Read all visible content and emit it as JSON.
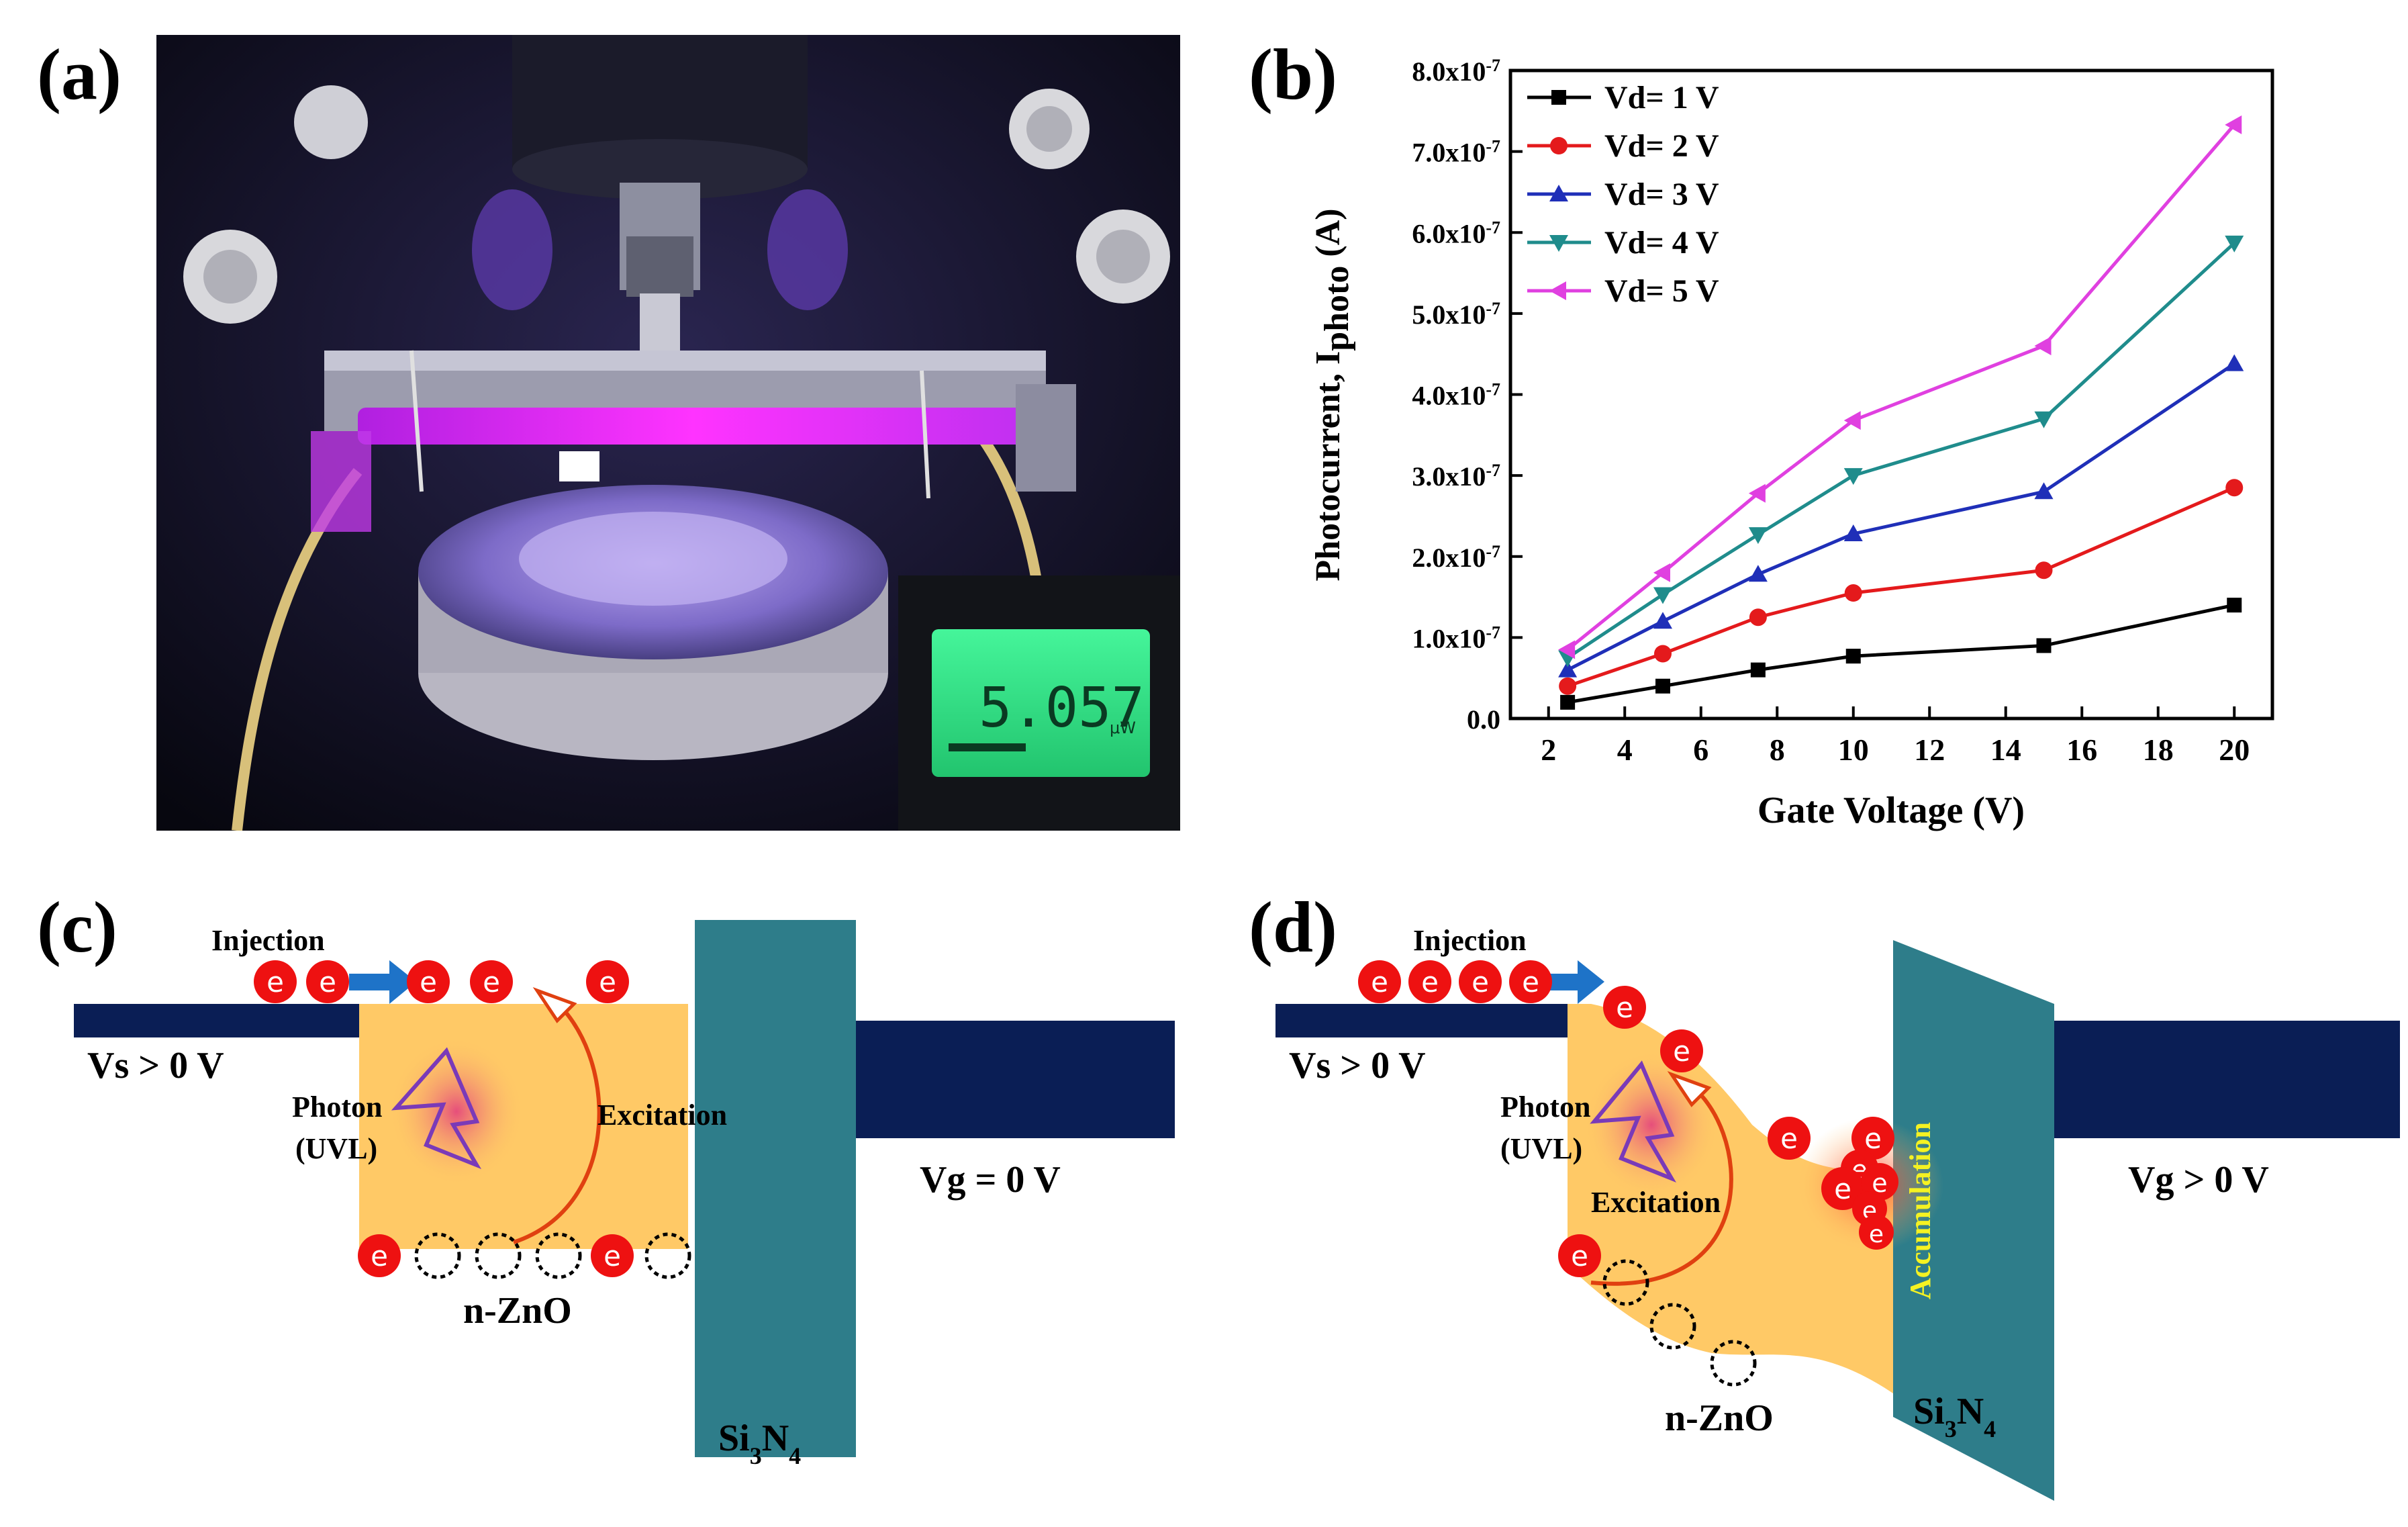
{
  "panels": {
    "a": "(a)",
    "b": "(b)",
    "c": "(c)",
    "d": "(d)"
  },
  "photo": {
    "meter_reading": "5.057",
    "meter_unit": "μW"
  },
  "chart_data": {
    "type": "line",
    "xlabel": "Gate Voltage (V)",
    "ylabel_main": "Photocurrent, I",
    "ylabel_sub": "photo",
    "ylabel_unit": " (A)",
    "x": [
      2.5,
      5,
      7.5,
      10,
      15,
      20
    ],
    "xlim": [
      1,
      21
    ],
    "ylim": [
      0,
      8e-07
    ],
    "xticks": [
      2,
      4,
      6,
      8,
      10,
      12,
      14,
      16,
      18,
      20
    ],
    "yticks": [
      {
        "v": 0,
        "label": "0.0",
        "exp": ""
      },
      {
        "v": 1e-07,
        "label": "1.0x10",
        "exp": "-7"
      },
      {
        "v": 2e-07,
        "label": "2.0x10",
        "exp": "-7"
      },
      {
        "v": 3e-07,
        "label": "3.0x10",
        "exp": "-7"
      },
      {
        "v": 4e-07,
        "label": "4.0x10",
        "exp": "-7"
      },
      {
        "v": 5e-07,
        "label": "5.0x10",
        "exp": "-7"
      },
      {
        "v": 6e-07,
        "label": "6.0x10",
        "exp": "-7"
      },
      {
        "v": 7e-07,
        "label": "7.0x10",
        "exp": "-7"
      },
      {
        "v": 8e-07,
        "label": "8.0x10",
        "exp": "-7"
      }
    ],
    "legend_position": "top-left",
    "series": [
      {
        "name": "Vd= 1 V",
        "color": "#000000",
        "marker": "square",
        "values": [
          2e-08,
          4e-08,
          6e-08,
          7.7e-08,
          9e-08,
          1.4e-07
        ]
      },
      {
        "name": "Vd= 2 V",
        "color": "#e41a1c",
        "marker": "circle",
        "values": [
          4e-08,
          8e-08,
          1.25e-07,
          1.55e-07,
          1.83e-07,
          2.85e-07
        ]
      },
      {
        "name": "Vd= 3 V",
        "color": "#1f2fb8",
        "marker": "triangle-up",
        "values": [
          6e-08,
          1.2e-07,
          1.78e-07,
          2.28e-07,
          2.8e-07,
          4.38e-07
        ]
      },
      {
        "name": "Vd= 4 V",
        "color": "#1f8c8c",
        "marker": "triangle-down",
        "values": [
          7.5e-08,
          1.53e-07,
          2.27e-07,
          3e-07,
          3.7e-07,
          5.87e-07
        ]
      },
      {
        "name": "Vd= 5 V",
        "color": "#e040e0",
        "marker": "triangle-left",
        "values": [
          8.5e-08,
          1.8e-07,
          2.78e-07,
          3.68e-07,
          4.6e-07,
          7.33e-07
        ]
      }
    ]
  },
  "diagram_c": {
    "injection": "Injection",
    "vs": "Vs > 0 V",
    "photon": "Photon",
    "uvl": "(UVL)",
    "excitation": "Excitation",
    "vg": "Vg = 0 V",
    "material": "n-ZnO",
    "insulator_main": "Si",
    "insulator_sub1": "3",
    "insulator_mid": "N",
    "insulator_sub2": "4",
    "electron": "e"
  },
  "diagram_d": {
    "injection": "Injection",
    "vs": "Vs > 0 V",
    "photon": "Photon",
    "uvl": "(UVL)",
    "excitation": "Excitation",
    "accumulation": "Accumulation",
    "vg": "Vg > 0 V",
    "material": "n-ZnO",
    "insulator_main": "Si",
    "insulator_sub1": "3",
    "insulator_mid": "N",
    "insulator_sub2": "4",
    "electron": "e"
  },
  "colors": {
    "band": "#ffc966",
    "navy": "#0a1e55",
    "insulator": "#2e7d8a",
    "electron": "#ee1111",
    "accent_arrow": "#1e73c8",
    "accumulation": "#f5f222"
  }
}
